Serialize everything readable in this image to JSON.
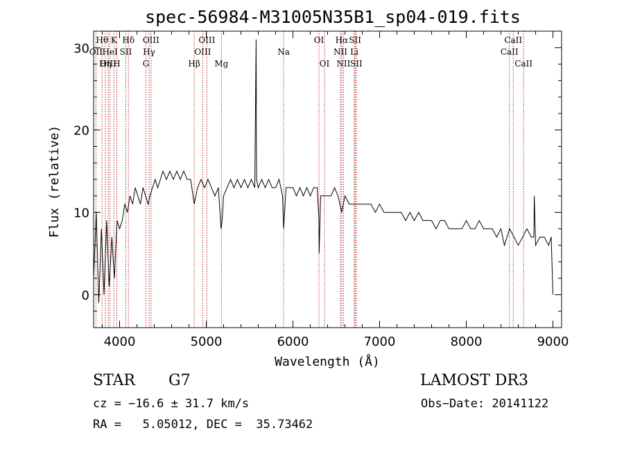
{
  "chart_data": {
    "type": "line",
    "title": "spec-56984-M31005N35B1_sp04-019.fits",
    "xlabel": "Wavelength (Å)",
    "ylabel": "Flux (relative)",
    "xlim": [
      3700,
      9100
    ],
    "ylim": [
      -4,
      32
    ],
    "xticks": [
      4000,
      5000,
      6000,
      7000,
      8000,
      9000
    ],
    "yticks": [
      0,
      10,
      20,
      30
    ],
    "series": [
      {
        "name": "flux",
        "x": [
          3700,
          3730,
          3760,
          3790,
          3820,
          3850,
          3880,
          3910,
          3940,
          3970,
          4000,
          4030,
          4060,
          4090,
          4120,
          4150,
          4180,
          4210,
          4240,
          4270,
          4300,
          4330,
          4350,
          4380,
          4410,
          4440,
          4470,
          4500,
          4540,
          4580,
          4620,
          4660,
          4700,
          4740,
          4780,
          4820,
          4861,
          4900,
          4940,
          4980,
          5020,
          5060,
          5100,
          5140,
          5170,
          5183,
          5200,
          5240,
          5280,
          5320,
          5360,
          5400,
          5440,
          5480,
          5520,
          5560,
          5575,
          5578,
          5580,
          5600,
          5640,
          5680,
          5720,
          5760,
          5800,
          5840,
          5880,
          5893,
          5920,
          5960,
          6000,
          6040,
          6080,
          6120,
          6160,
          6200,
          6240,
          6280,
          6300,
          6302,
          6320,
          6360,
          6400,
          6440,
          6480,
          6520,
          6563,
          6600,
          6650,
          6700,
          6750,
          6800,
          6850,
          6900,
          6950,
          7000,
          7050,
          7100,
          7150,
          7200,
          7250,
          7300,
          7350,
          7400,
          7450,
          7500,
          7550,
          7600,
          7650,
          7700,
          7750,
          7800,
          7850,
          7900,
          7950,
          8000,
          8050,
          8100,
          8150,
          8200,
          8250,
          8300,
          8350,
          8400,
          8440,
          8500,
          8550,
          8600,
          8650,
          8700,
          8750,
          8780,
          8785,
          8800,
          8850,
          8900,
          8950,
          8980,
          9000
        ],
        "values": [
          2,
          10,
          -1,
          8,
          0,
          9,
          1,
          7,
          2,
          9,
          8,
          9,
          11,
          10,
          12,
          11,
          13,
          12,
          11,
          13,
          12,
          11,
          12,
          13,
          14,
          13,
          14,
          15,
          14,
          15,
          14,
          15,
          14,
          15,
          14,
          14,
          11,
          13,
          14,
          13,
          14,
          13,
          12,
          13,
          8,
          9,
          12,
          13,
          14,
          13,
          14,
          13,
          14,
          13,
          14,
          13,
          31,
          20,
          14,
          13,
          14,
          13,
          14,
          13,
          13,
          14,
          12,
          8,
          13,
          13,
          13,
          12,
          13,
          12,
          13,
          12,
          13,
          13,
          9,
          5,
          12,
          12,
          12,
          12,
          13,
          12,
          10,
          12,
          11,
          11,
          11,
          11,
          11,
          11,
          10,
          11,
          10,
          10,
          10,
          10,
          10,
          9,
          10,
          9,
          10,
          9,
          9,
          9,
          8,
          9,
          9,
          8,
          8,
          8,
          8,
          9,
          8,
          8,
          9,
          8,
          8,
          8,
          7,
          8,
          6,
          8,
          7,
          6,
          7,
          8,
          7,
          7,
          12,
          6,
          7,
          7,
          6,
          7,
          0
        ]
      }
    ],
    "lines": [
      {
        "label": "Hθ",
        "wl": 3798,
        "row": 0
      },
      {
        "label": "OII",
        "wl": 3727,
        "row": 1
      },
      {
        "label": "OIII",
        "wl": 3869,
        "row": 2
      },
      {
        "label": "K",
        "wl": 3934,
        "row": 0
      },
      {
        "label": "HeI",
        "wl": 3889,
        "row": 1
      },
      {
        "label": "Hη",
        "wl": 3835,
        "row": 2
      },
      {
        "label": "SII",
        "wl": 4072,
        "row": 1
      },
      {
        "label": "H",
        "wl": 3968,
        "row": 2
      },
      {
        "label": "Hδ",
        "wl": 4102,
        "row": 0
      },
      {
        "label": "OIII",
        "wl": 4363,
        "row": 0
      },
      {
        "label": "Hγ",
        "wl": 4340,
        "row": 1
      },
      {
        "label": "G",
        "wl": 4304,
        "row": 2
      },
      {
        "label": "OIII",
        "wl": 5007,
        "row": 0
      },
      {
        "label": "OIII",
        "wl": 4959,
        "row": 1
      },
      {
        "label": "Hβ",
        "wl": 4861,
        "row": 2
      },
      {
        "label": "Mg",
        "wl": 5175,
        "row": 2
      },
      {
        "label": "Na",
        "wl": 5893,
        "row": 1
      },
      {
        "label": "OI",
        "wl": 6300,
        "row": 0
      },
      {
        "label": "OI",
        "wl": 6364,
        "row": 2
      },
      {
        "label": "Hα",
        "wl": 6563,
        "row": 0
      },
      {
        "label": "NII",
        "wl": 6548,
        "row": 1
      },
      {
        "label": "NII",
        "wl": 6583,
        "row": 2
      },
      {
        "label": "SII",
        "wl": 6717,
        "row": 0
      },
      {
        "label": "Li",
        "wl": 6708,
        "row": 1
      },
      {
        "label": "SII",
        "wl": 6731,
        "row": 2
      },
      {
        "label": "CaII",
        "wl": 8542,
        "row": 0
      },
      {
        "label": "CaII",
        "wl": 8498,
        "row": 1
      },
      {
        "label": "CaII",
        "wl": 8662,
        "row": 2
      }
    ]
  },
  "info": {
    "object_class": "STAR",
    "subclass": "G7",
    "survey": "LAMOST DR3",
    "cz": "cz = −16.6 ± 31.7 km/s",
    "obs_date": "Obs−Date: 20141122",
    "coords": "RA =   5.05012, DEC =  35.73462"
  },
  "colors": {
    "spectrum": "#000000",
    "line_marker": "#b22222",
    "axis": "#000000",
    "background": "#ffffff"
  }
}
